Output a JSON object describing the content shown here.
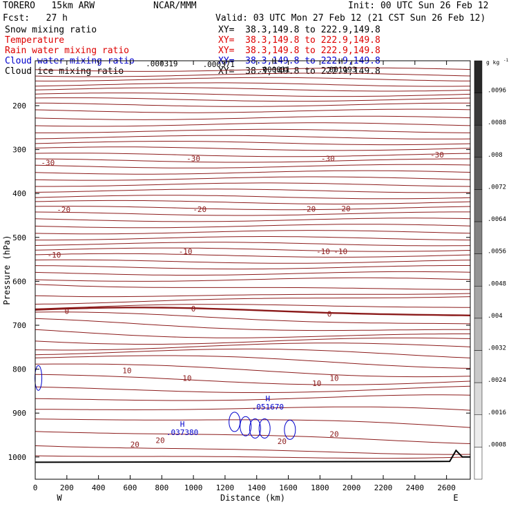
{
  "header": {
    "model": "TORERO   15km ARW",
    "org": "NCAR/MMM",
    "init": "Init: 00 UTC Sun 26 Feb 12",
    "fcst": "Fcst:   27 h",
    "valid": "Valid: 03 UTC Mon 27 Feb 12 (21 CST Sun 26 Feb 12)"
  },
  "fields": [
    {
      "name": "Snow mixing ratio",
      "xy": "XY=  38.3,149.8 to 222.9,149.8",
      "color": "#000000"
    },
    {
      "name": "Temperature",
      "xy": "XY=  38.3,149.8 to 222.9,149.8",
      "color": "#dd0000"
    },
    {
      "name": "Rain water mixing ratio",
      "xy": "XY=  38.3,149.8 to 222.9,149.8",
      "color": "#dd0000"
    },
    {
      "name": "Cloud water mixing ratio",
      "xy": "XY=  38.3,149.8 to 222.9,149.8",
      "color": "#0000cc"
    },
    {
      "name": "Cloud ice mixing ratio",
      "xy": "XY=  38.3,149.8 to 222.9,149.8",
      "color": "#000000"
    }
  ],
  "colors": {
    "temperature": "#8b1a1a",
    "cloud_water": "#0000cc",
    "terrain": "#000000"
  },
  "chart_data": {
    "type": "contour",
    "xlabel": "Distance (km)",
    "ylabel": "Pressure (hPa)",
    "xlim": [
      0,
      2750
    ],
    "ylim": [
      1050,
      100
    ],
    "x_ticks": [
      0,
      200,
      400,
      600,
      800,
      1000,
      1200,
      1400,
      1600,
      1800,
      2000,
      2200,
      2400,
      2600
    ],
    "y_ticks": [
      200,
      300,
      400,
      500,
      600,
      700,
      800,
      900,
      1000
    ],
    "x_end_labels": {
      "left": "W",
      "right": "E"
    },
    "colorbar": {
      "unit": "g kg",
      "unit_exp": "-1",
      "tick_labels": [
        ".0096",
        ".0088",
        ".008",
        ".0072",
        ".0064",
        ".0056",
        ".0048",
        ".004",
        ".0032",
        ".0024",
        ".0016",
        ".0008"
      ]
    },
    "temperature_labels": [
      {
        "x": 80,
        "p": 330,
        "text": "-30"
      },
      {
        "x": 1000,
        "p": 320,
        "text": "-30"
      },
      {
        "x": 1850,
        "p": 320,
        "text": "-30"
      },
      {
        "x": 2540,
        "p": 312,
        "text": "-30"
      },
      {
        "x": 180,
        "p": 437,
        "text": "-20"
      },
      {
        "x": 1040,
        "p": 436,
        "text": "-20"
      },
      {
        "x": 1730,
        "p": 435,
        "text": "-20"
      },
      {
        "x": 1950,
        "p": 434,
        "text": "-20"
      },
      {
        "x": 120,
        "p": 540,
        "text": "-10"
      },
      {
        "x": 950,
        "p": 532,
        "text": "-10"
      },
      {
        "x": 1820,
        "p": 532,
        "text": "-10"
      },
      {
        "x": 1930,
        "p": 532,
        "text": "-10"
      },
      {
        "x": 200,
        "p": 668,
        "text": "0"
      },
      {
        "x": 1000,
        "p": 662,
        "text": "0"
      },
      {
        "x": 1860,
        "p": 674,
        "text": "0"
      },
      {
        "x": 580,
        "p": 803,
        "text": "10"
      },
      {
        "x": 960,
        "p": 820,
        "text": "10"
      },
      {
        "x": 1780,
        "p": 832,
        "text": "10"
      },
      {
        "x": 1890,
        "p": 820,
        "text": "10"
      },
      {
        "x": 630,
        "p": 971,
        "text": "20"
      },
      {
        "x": 790,
        "p": 962,
        "text": "20"
      },
      {
        "x": 1560,
        "p": 964,
        "text": "20"
      },
      {
        "x": 1890,
        "p": 948,
        "text": "20"
      }
    ],
    "extrema": [
      {
        "x": 1470,
        "p": 892,
        "mark": "H",
        "value": ".051670",
        "color": "#0000cc"
      },
      {
        "x": 930,
        "p": 950,
        "mark": "H",
        "value": ".037380",
        "color": "#0000cc"
      },
      {
        "x": 1510,
        "p": 124,
        "mark": "H",
        "value": ".000811",
        "color": "#000000"
      },
      {
        "x": 1930,
        "p": 124,
        "mark": "H",
        "value": ".001193",
        "color": "#000000"
      },
      {
        "x": 800,
        "p": 110,
        "mark": "",
        "value": ".000319",
        "color": "#000000"
      },
      {
        "x": 1160,
        "p": 112,
        "mark": "",
        "value": ".000371",
        "color": "#000000"
      }
    ]
  }
}
